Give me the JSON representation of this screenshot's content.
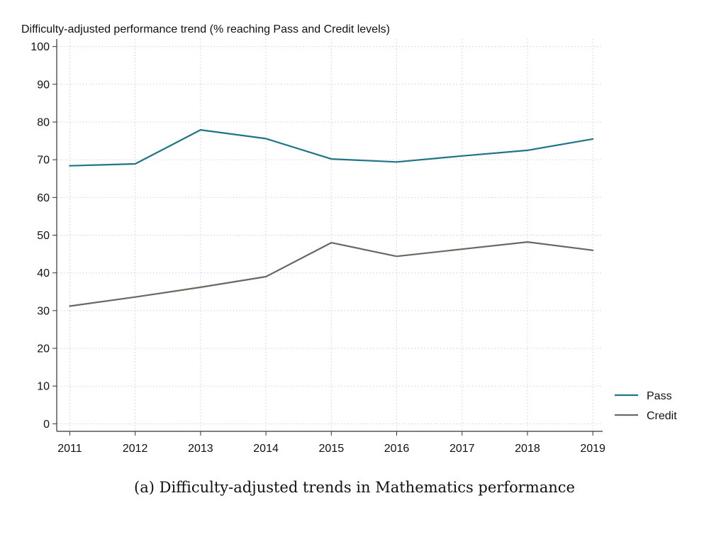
{
  "chart_data": {
    "type": "line",
    "title": "Difficulty-adjusted performance trend (% reaching Pass and Credit levels)",
    "xlabel": "",
    "ylabel": "",
    "x": [
      2011,
      2012,
      2013,
      2014,
      2015,
      2016,
      2017,
      2018,
      2019
    ],
    "x_tick_labels": [
      "2011",
      "2012",
      "2013",
      "2014",
      "2015",
      "2016",
      "2017",
      "2018",
      "2019"
    ],
    "y_ticks": [
      0,
      10,
      20,
      30,
      40,
      50,
      60,
      70,
      80,
      90,
      100
    ],
    "y_tick_labels": [
      "0",
      "10",
      "20",
      "30",
      "40",
      "50",
      "60",
      "70",
      "80",
      "90",
      "100"
    ],
    "xlim": [
      2010.8,
      2019.15
    ],
    "ylim": [
      -2,
      102
    ],
    "grid": true,
    "legend_position": "right",
    "series": [
      {
        "name": "Pass",
        "color": "#1f7485",
        "values": [
          68.4,
          68.9,
          77.9,
          75.6,
          70.2,
          69.4,
          71.0,
          72.5,
          75.5
        ]
      },
      {
        "name": "Credit",
        "color": "#6e6660",
        "values": [
          31.2,
          33.6,
          36.2,
          39.0,
          48.0,
          44.4,
          46.3,
          48.2,
          46.0
        ]
      }
    ]
  },
  "caption": "(a) Difficulty-adjusted trends in Mathematics performance"
}
